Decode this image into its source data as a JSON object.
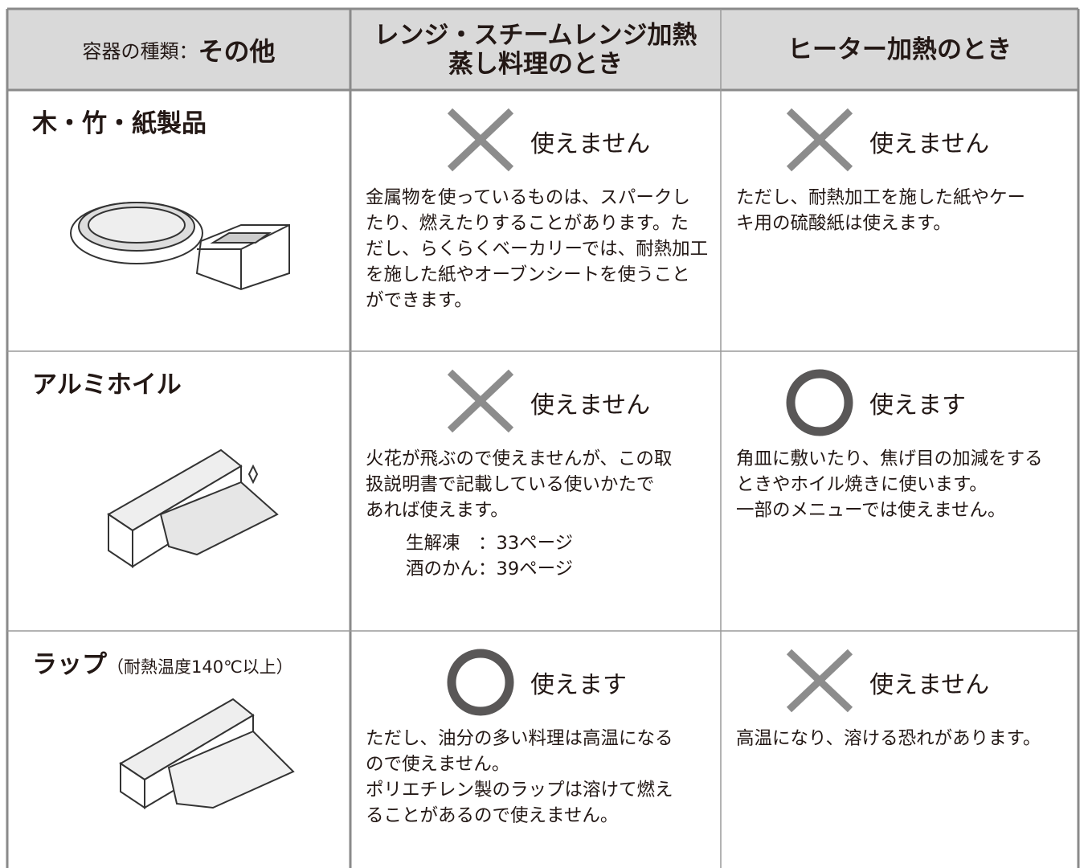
{
  "header": {
    "label": "容器の種類：",
    "title": "その他",
    "columns": [
      [
        "レンジ・スチームレンジ加熱",
        "蒸し料理のとき"
      ],
      [
        "ヒーター加熱のとき"
      ]
    ]
  },
  "rows": [
    {
      "name": "木・竹・紙製品",
      "cells": [
        {
          "icon": "cross",
          "status": "使えません",
          "lines": [
            "金属物を使っているものは、スパークし",
            "たり、燃えたりすることがあります。た",
            "だし、らくらくベーカリーでは、耐熱加工",
            "を施した紙やオーブンシートを使うこと",
            "ができます。"
          ]
        },
        {
          "icon": "cross",
          "status": "使えません",
          "lines": [
            "ただし、耐熱加工を施した紙やケー",
            "キ用の硫酸紙は使えます。"
          ]
        }
      ]
    },
    {
      "name": "アルミホイル",
      "cells": [
        {
          "icon": "cross",
          "status": "使えません",
          "lines": [
            "火花が飛ぶので使えませんが、この取",
            "扱説明書で記載している使いかたで",
            "あれば使えます。"
          ],
          "sub": [
            "生解凍　：33ページ",
            "酒のかん：39ページ"
          ]
        },
        {
          "icon": "circle",
          "status": "使えます",
          "lines": [
            "角皿に敷いたり、焦げ目の加減をする",
            "ときやホイル焼きに使います。",
            "一部のメニューでは使えません。"
          ]
        }
      ]
    },
    {
      "name": "ラップ",
      "note": "（耐熱温度140℃以上）",
      "cells": [
        {
          "icon": "circle",
          "status": "使えます",
          "lines": [
            "ただし、油分の多い料理は高温になる",
            "ので使えません。",
            "ポリエチレン製のラップは溶けて燃え",
            "ることがあるので使えません。"
          ]
        },
        {
          "icon": "cross",
          "status": "使えません",
          "lines": [
            "高温になり、溶ける恐れがあります。"
          ]
        }
      ]
    }
  ]
}
